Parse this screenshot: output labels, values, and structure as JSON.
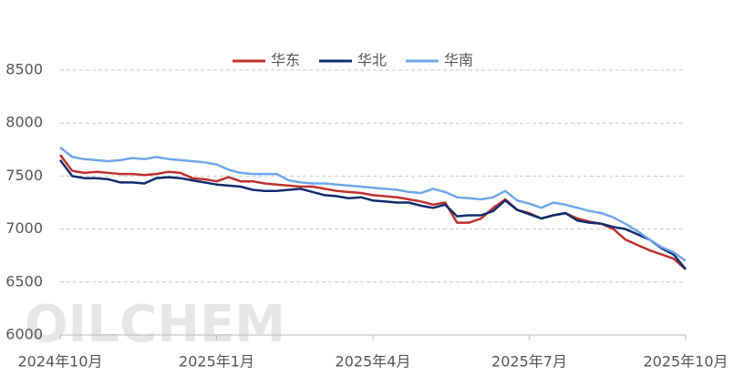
{
  "chart_data": {
    "type": "line",
    "watermark": "OILCHEM",
    "categories": [
      "2024年10月",
      null,
      null,
      null,
      null,
      null,
      null,
      null,
      null,
      null,
      null,
      null,
      null,
      "2025年1月",
      null,
      null,
      null,
      null,
      null,
      null,
      null,
      null,
      null,
      null,
      null,
      null,
      "2025年4月",
      null,
      null,
      null,
      null,
      null,
      null,
      null,
      null,
      null,
      null,
      null,
      null,
      "2025年7月",
      null,
      null,
      null,
      null,
      null,
      null,
      null,
      null,
      null,
      null,
      null,
      null,
      "2025年10月"
    ],
    "series": [
      {
        "name": "华东",
        "color": "#c0302b",
        "values": [
          7700,
          7550,
          7530,
          7540,
          7530,
          7520,
          7520,
          7510,
          7520,
          7540,
          7530,
          7480,
          7470,
          7450,
          7490,
          7450,
          7450,
          7430,
          7420,
          7410,
          7400,
          7400,
          7380,
          7360,
          7350,
          7340,
          7320,
          7310,
          7300,
          7280,
          7260,
          7230,
          7250,
          7060,
          7060,
          7100,
          7200,
          7280,
          7180,
          7150,
          7100,
          7130,
          7150,
          7100,
          7070,
          7050,
          7000,
          6900,
          6850,
          6800,
          6760,
          6720,
          6620
        ]
      },
      {
        "name": "华北",
        "color": "#0e2c6e",
        "values": [
          7650,
          7500,
          7480,
          7480,
          7470,
          7440,
          7440,
          7430,
          7480,
          7490,
          7480,
          7460,
          7440,
          7420,
          7410,
          7400,
          7370,
          7360,
          7360,
          7370,
          7380,
          7350,
          7320,
          7310,
          7290,
          7300,
          7270,
          7260,
          7250,
          7250,
          7220,
          7200,
          7230,
          7120,
          7130,
          7130,
          7170,
          7270,
          7180,
          7140,
          7100,
          7130,
          7150,
          7080,
          7060,
          7050,
          7020,
          7000,
          6950,
          6900,
          6820,
          6760,
          6620
        ]
      },
      {
        "name": "华南",
        "color": "#6ea6ee",
        "values": [
          7770,
          7680,
          7660,
          7650,
          7640,
          7650,
          7670,
          7660,
          7680,
          7660,
          7650,
          7640,
          7630,
          7610,
          7560,
          7530,
          7520,
          7520,
          7520,
          7460,
          7440,
          7430,
          7430,
          7420,
          7410,
          7400,
          7390,
          7380,
          7370,
          7350,
          7340,
          7380,
          7350,
          7300,
          7290,
          7280,
          7300,
          7360,
          7270,
          7240,
          7200,
          7250,
          7230,
          7200,
          7170,
          7150,
          7110,
          7050,
          6980,
          6900,
          6830,
          6780,
          6700
        ]
      }
    ],
    "ylim": [
      6000,
      8500
    ],
    "yticks": [
      6000,
      6500,
      7000,
      7500,
      8000,
      8500
    ],
    "grid": true
  }
}
